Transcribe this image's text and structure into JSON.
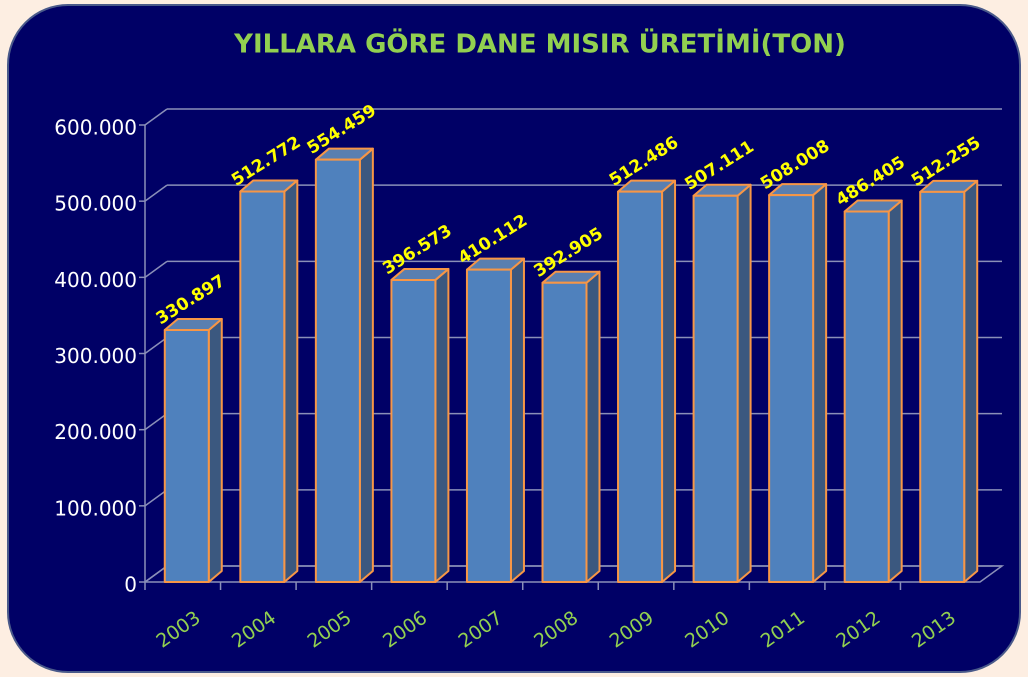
{
  "chart_data": {
    "type": "bar3d",
    "title": "YILLARA GÖRE DANE MISIR ÜRETİMİ(TON)",
    "categories": [
      "2003",
      "2004",
      "2005",
      "2006",
      "2007",
      "2008",
      "2009",
      "2010",
      "2011",
      "2012",
      "2013"
    ],
    "values": [
      330897,
      512772,
      554459,
      396573,
      410112,
      392905,
      512486,
      507111,
      508008,
      486405,
      512255
    ],
    "value_labels": [
      "330.897",
      "512.772",
      "554.459",
      "396.573",
      "410.112",
      "392.905",
      "512.486",
      "507.111",
      "508.008",
      "486.405",
      "512.255"
    ],
    "color": "#4f81bd",
    "edge_color": "#f79646",
    "label_color": "#ffff00",
    "category_color": "#92d050",
    "ylim": [
      0,
      600000
    ],
    "yticks": [
      0,
      {
        "value": 100000,
        "label": "100.000"
      },
      {
        "value": 200000,
        "label": "200.000"
      },
      {
        "value": 300000,
        "label": "300.000"
      },
      {
        "value": 400000,
        "label": "400.000"
      },
      {
        "value": 500000,
        "label": "500.000"
      },
      {
        "value": 600000,
        "label": "600.000"
      }
    ],
    "grid": true
  }
}
